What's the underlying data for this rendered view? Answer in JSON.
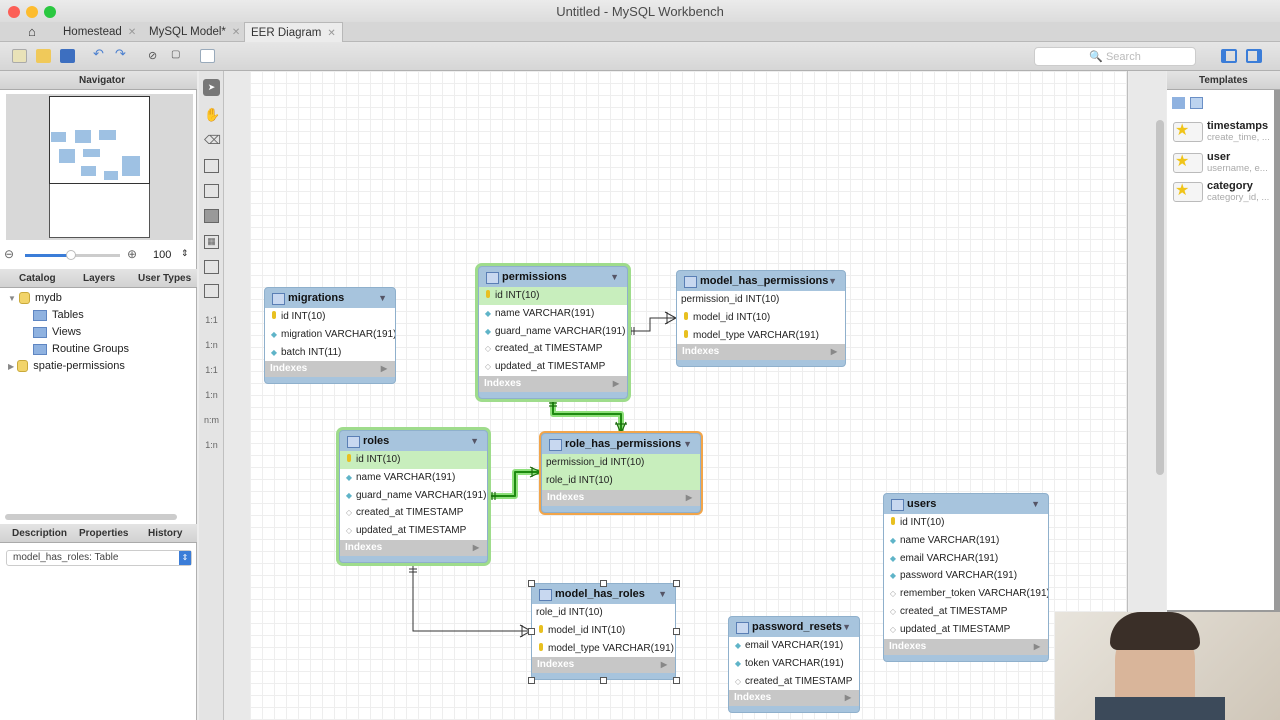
{
  "window": {
    "title": "Untitled - MySQL Workbench"
  },
  "tabs": [
    {
      "label": "Homestead"
    },
    {
      "label": "MySQL Model*"
    },
    {
      "label": "EER Diagram",
      "active": true
    }
  ],
  "toolbar": {
    "search_placeholder": "Search",
    "icons": [
      "new-icon",
      "open-icon",
      "save-icon",
      "undo-icon",
      "redo-icon",
      "toggle-grid-icon",
      "toggle-page-icon",
      "new-document-icon"
    ]
  },
  "navigator": {
    "title": "Navigator",
    "zoom": "100"
  },
  "catalog": {
    "tabs": [
      "Catalog",
      "Layers",
      "User Types"
    ],
    "tree": [
      {
        "label": "mydb",
        "expanded": true,
        "children": [
          "Tables",
          "Views",
          "Routine Groups"
        ]
      },
      {
        "label": "spatie-permissions",
        "expanded": false
      }
    ]
  },
  "bottom_panel": {
    "tabs": [
      "Description",
      "Properties",
      "History"
    ],
    "selected": "model_has_roles: Table"
  },
  "vertical_tools": [
    "select",
    "hand",
    "eraser",
    "layer",
    "note",
    "image",
    "table",
    "view",
    "routine-group",
    "1:1",
    "1:n",
    "1:1",
    "1:n",
    "n:m",
    "1:n"
  ],
  "templates": {
    "title": "Templates",
    "items": [
      {
        "name": "timestamps",
        "desc": "create_time, ..."
      },
      {
        "name": "user",
        "desc": "username, e..."
      },
      {
        "name": "category",
        "desc": "category_id, ..."
      }
    ]
  },
  "tables": {
    "migrations": {
      "name": "migrations",
      "columns": [
        {
          "t": "id INT(10)",
          "icon": "key"
        },
        {
          "t": "migration VARCHAR(191)",
          "icon": "fd"
        },
        {
          "t": "batch INT(11)",
          "icon": "fd"
        }
      ]
    },
    "permissions": {
      "name": "permissions",
      "columns": [
        {
          "t": "id INT(10)",
          "icon": "key",
          "hl": true
        },
        {
          "t": "name VARCHAR(191)",
          "icon": "fd"
        },
        {
          "t": "guard_name VARCHAR(191)",
          "icon": "fd"
        },
        {
          "t": "created_at TIMESTAMP",
          "icon": "hd2"
        },
        {
          "t": "updated_at TIMESTAMP",
          "icon": "hd2"
        }
      ]
    },
    "model_has_permissions": {
      "name": "model_has_permissions",
      "columns": [
        {
          "t": "permission_id INT(10)",
          "icon": ""
        },
        {
          "t": "model_id INT(10)",
          "icon": "key"
        },
        {
          "t": "model_type VARCHAR(191)",
          "icon": "key"
        }
      ]
    },
    "roles": {
      "name": "roles",
      "columns": [
        {
          "t": "id INT(10)",
          "icon": "key",
          "hl": true
        },
        {
          "t": "name VARCHAR(191)",
          "icon": "fd"
        },
        {
          "t": "guard_name VARCHAR(191)",
          "icon": "fd"
        },
        {
          "t": "created_at TIMESTAMP",
          "icon": "hd2"
        },
        {
          "t": "updated_at TIMESTAMP",
          "icon": "hd2"
        }
      ]
    },
    "role_has_permissions": {
      "name": "role_has_permissions",
      "columns": [
        {
          "t": "permission_id INT(10)",
          "icon": "",
          "hl": true
        },
        {
          "t": "role_id INT(10)",
          "icon": "",
          "hl": true
        }
      ]
    },
    "model_has_roles": {
      "name": "model_has_roles",
      "columns": [
        {
          "t": "role_id INT(10)",
          "icon": ""
        },
        {
          "t": "model_id INT(10)",
          "icon": "key"
        },
        {
          "t": "model_type VARCHAR(191)",
          "icon": "key"
        }
      ]
    },
    "password_resets": {
      "name": "password_resets",
      "columns": [
        {
          "t": "email VARCHAR(191)",
          "icon": "fd"
        },
        {
          "t": "token VARCHAR(191)",
          "icon": "fd"
        },
        {
          "t": "created_at TIMESTAMP",
          "icon": "hd2"
        }
      ]
    },
    "users": {
      "name": "users",
      "columns": [
        {
          "t": "id INT(10)",
          "icon": "key"
        },
        {
          "t": "name VARCHAR(191)",
          "icon": "fd"
        },
        {
          "t": "email VARCHAR(191)",
          "icon": "fd"
        },
        {
          "t": "password VARCHAR(191)",
          "icon": "fd"
        },
        {
          "t": "remember_token VARCHAR(191)",
          "icon": "hd2"
        },
        {
          "t": "created_at TIMESTAMP",
          "icon": "hd2"
        },
        {
          "t": "updated_at TIMESTAMP",
          "icon": "hd2"
        }
      ]
    }
  },
  "indexes_label": "Indexes",
  "colors": {
    "table_header": "#a7c4dd",
    "highlight": "#c8eebd",
    "selected_border": "#f2a54a",
    "relation_highlight": "#2a9a1a"
  }
}
